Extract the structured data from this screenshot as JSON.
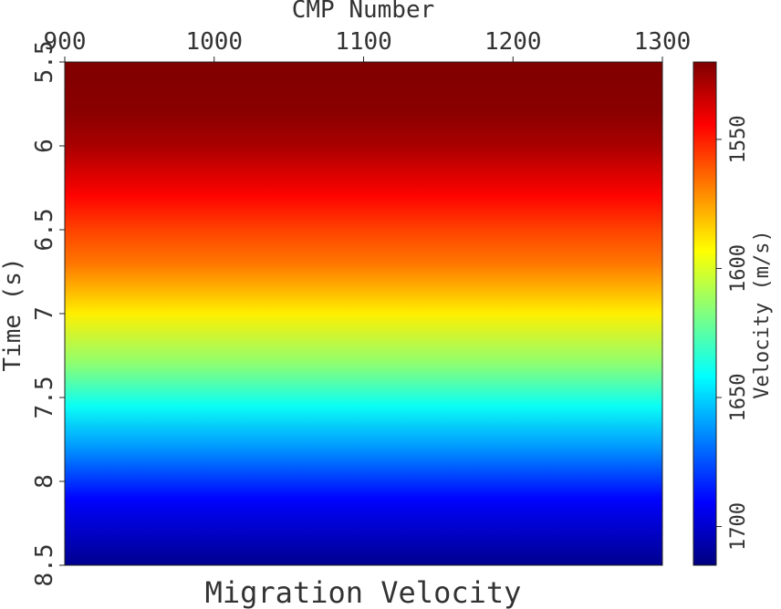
{
  "chart_data": {
    "type": "heatmap",
    "title": "Migration Velocity",
    "xlabel": "CMP Number",
    "ylabel": "Time (s)",
    "x_ticks": [
      900,
      1000,
      1100,
      1200,
      1300
    ],
    "y_ticks": [
      5.5,
      6,
      6.5,
      7,
      7.5,
      8,
      8.5
    ],
    "y_tick_labels": [
      "5.5",
      "6",
      "6.5",
      "7",
      "7.5",
      "8",
      "8.5"
    ],
    "xlim": [
      900,
      1300
    ],
    "ylim": [
      5.5,
      8.5
    ],
    "x_axis_position": "top",
    "y_inverted": true,
    "colorbar": {
      "label": "Velocity (m/s)",
      "ticks": [
        1550,
        1600,
        1650,
        1700
      ],
      "range": [
        1520,
        1715
      ],
      "colormap": "jet",
      "orientation": "vertical",
      "low_value_at": "top"
    },
    "velocity_profile": {
      "time_s": [
        5.5,
        5.8,
        6.0,
        6.3,
        6.5,
        6.7,
        7.0,
        7.3,
        7.55,
        7.8,
        8.1,
        8.5
      ],
      "velocity_ms": [
        1520,
        1522,
        1528,
        1545,
        1557,
        1567,
        1590,
        1615,
        1640,
        1662,
        1690,
        1712
      ]
    },
    "lateral_variation": "none"
  }
}
